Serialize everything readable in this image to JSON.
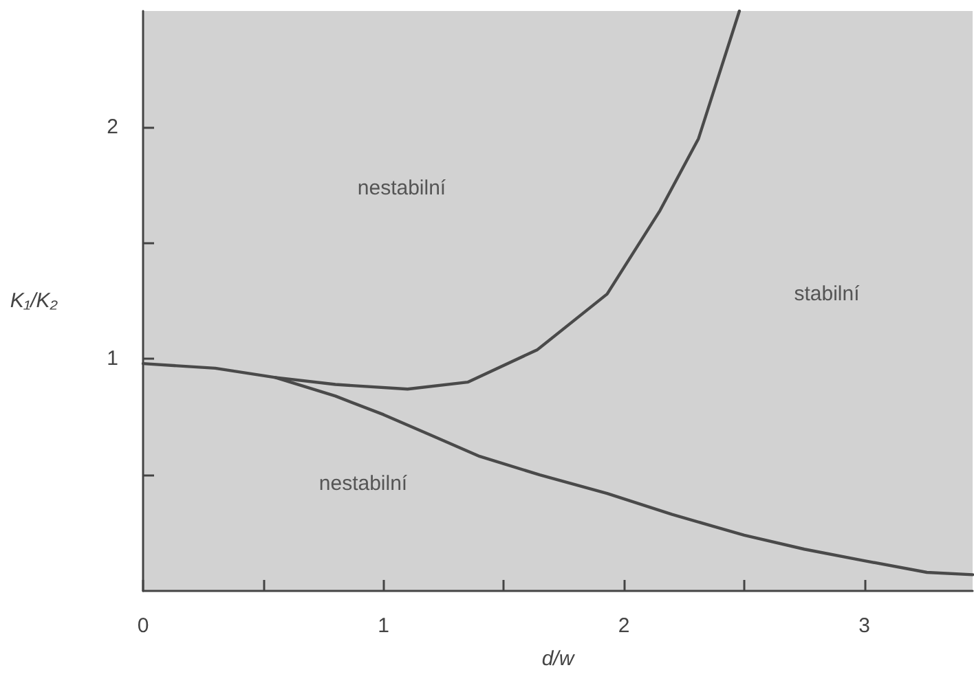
{
  "chart_data": {
    "type": "line",
    "xlabel": "d/w",
    "ylabel": "K₁/K₂",
    "xlim": [
      0,
      3.45
    ],
    "ylim": [
      0,
      2.5
    ],
    "xticks": [
      0,
      {
        "value": 0.5,
        "label": null
      },
      1,
      {
        "value": 1.5,
        "label": null
      },
      2,
      {
        "value": 2.5,
        "label": null
      },
      3
    ],
    "yticks": [
      {
        "value": 0.5,
        "label": null
      },
      1,
      {
        "value": 1.5,
        "label": null
      },
      2
    ],
    "grid": false,
    "marker": "none",
    "line_style": "solid",
    "tick_labels": "xy",
    "series": [
      {
        "color": "#4a4a4a",
        "x": [
          0,
          0.3,
          0.55,
          0.8,
          1.0,
          1.2,
          1.4,
          1.65,
          1.93,
          2.2,
          2.5,
          2.75,
          3.0,
          3.26,
          3.45
        ],
        "values": [
          0.98,
          0.96,
          0.92,
          0.84,
          0.76,
          0.67,
          0.58,
          0.5,
          0.42,
          0.33,
          0.24,
          0.18,
          0.13,
          0.08,
          0.07
        ]
      },
      {
        "color": "#4a4a4a",
        "x": [
          0.55,
          0.8,
          1.1,
          1.35,
          1.64,
          1.93,
          2.15,
          2.31,
          2.48
        ],
        "values": [
          0.92,
          0.89,
          0.87,
          0.9,
          1.04,
          1.28,
          1.64,
          1.95,
          2.5
        ]
      }
    ],
    "annotations": [
      "nestabilní",
      "nestabilní",
      "stabilní"
    ]
  }
}
